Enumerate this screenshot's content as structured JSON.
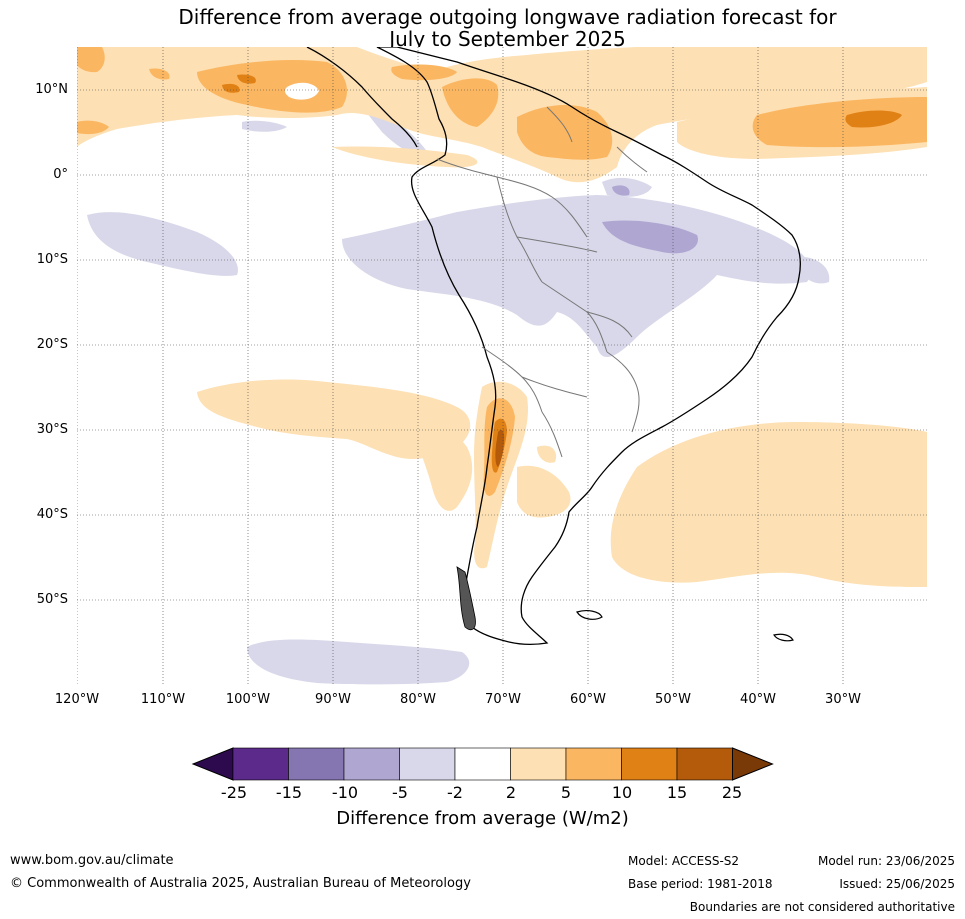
{
  "title": {
    "line1": "Difference from average outgoing longwave radiation forecast for",
    "line2": "July to September 2025"
  },
  "map": {
    "region": "South America",
    "lat_labels": [
      "10°N",
      "0°",
      "10°S",
      "20°S",
      "30°S",
      "40°S",
      "50°S"
    ],
    "lon_labels": [
      "120°W",
      "110°W",
      "100°W",
      "90°W",
      "80°W",
      "70°W",
      "60°W",
      "50°W",
      "40°W",
      "30°W"
    ]
  },
  "legend": {
    "label": "Difference from average (W/m2)",
    "ticks": [
      "-25",
      "-15",
      "-10",
      "-5",
      "-2",
      "2",
      "5",
      "10",
      "15",
      "25"
    ],
    "colors": [
      "#2d0a4e",
      "#5c2a8a",
      "#8575b0",
      "#b0a6d2",
      "#d8d8ea",
      "#ffffff",
      "#fde0b3",
      "#fbb661",
      "#e08116",
      "#b35a0b",
      "#7a3a08"
    ]
  },
  "footer": {
    "website": "www.bom.gov.au/climate",
    "copyright": "© Commonwealth of Australia 2025, Australian Bureau of Meteorology",
    "model": "Model: ACCESS-S2",
    "base_period": "Base period: 1981-2018",
    "model_run": "Model run: 23/06/2025",
    "issued": "Issued: 25/06/2025",
    "disclaimer": "Boundaries are not considered authoritative"
  }
}
